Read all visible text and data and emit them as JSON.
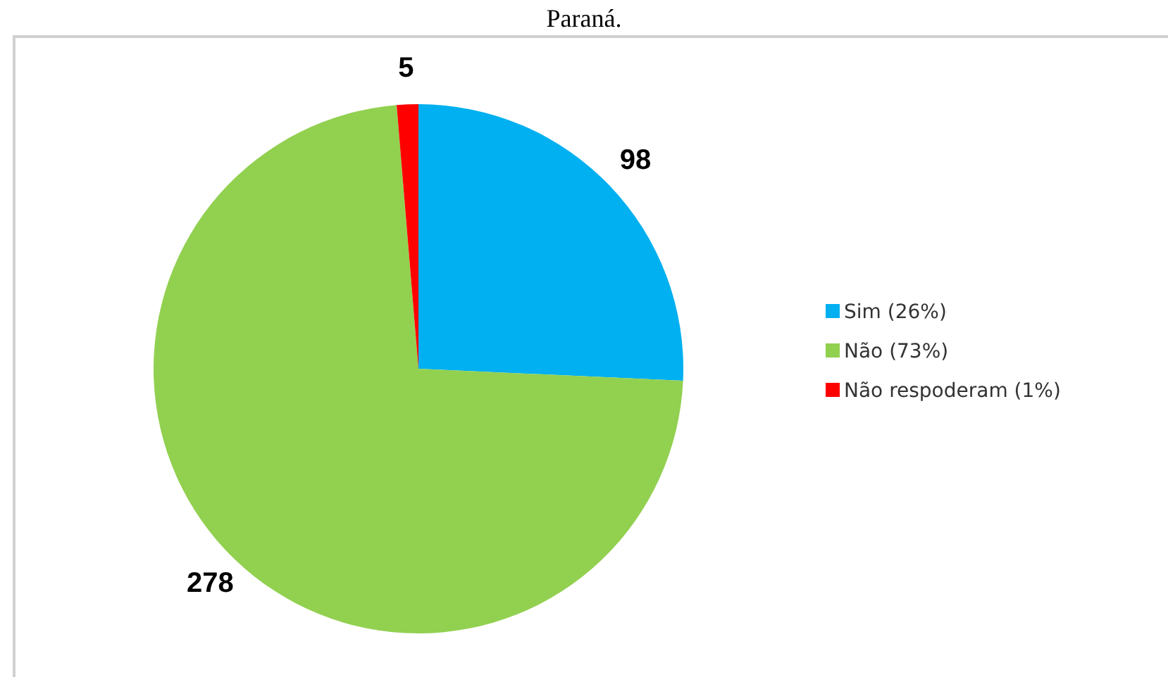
{
  "chart_data": {
    "type": "pie",
    "title": "Paraná.",
    "categories": [
      "Sim (26%)",
      "Não (73%)",
      "Não respoderam (1%)"
    ],
    "values": [
      98,
      278,
      5
    ],
    "colors": [
      "#00b0f0",
      "#92d050",
      "#ff0000"
    ],
    "data_labels": true,
    "legend": "right"
  }
}
